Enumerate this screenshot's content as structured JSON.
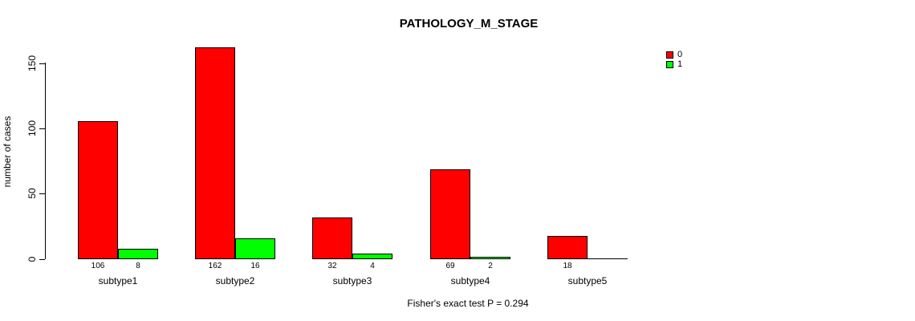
{
  "title": "PATHOLOGY_M_STAGE",
  "ylabel": "number of cases",
  "footnote": "Fisher's exact test P = 0.294",
  "chart_data": {
    "type": "bar",
    "categories": [
      "subtype1",
      "subtype2",
      "subtype3",
      "subtype4",
      "subtype5"
    ],
    "series": [
      {
        "name": "0",
        "color": "#ff0000",
        "values": [
          106,
          162,
          32,
          69,
          18
        ]
      },
      {
        "name": "1",
        "color": "#00ff00",
        "values": [
          8,
          16,
          4,
          2,
          0
        ]
      }
    ],
    "bar_labels": [
      [
        "106",
        "8"
      ],
      [
        "162",
        "16"
      ],
      [
        "32",
        "4"
      ],
      [
        "69",
        "2"
      ],
      [
        "18",
        ""
      ]
    ],
    "yticks": [
      0,
      50,
      100,
      150
    ],
    "ylim": [
      0,
      150
    ],
    "grid": false,
    "legend_position": "top-right",
    "legend_entries": [
      "0",
      "1"
    ]
  }
}
